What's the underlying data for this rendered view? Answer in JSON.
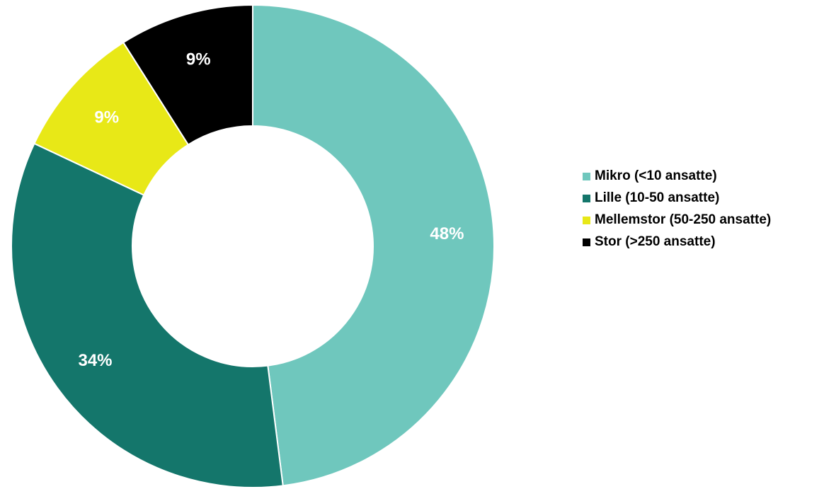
{
  "chart_data": {
    "type": "pie",
    "style": "donut",
    "title": "",
    "categories": [
      "Mikro (<10 ansatte)",
      "Lille (10-50 ansatte)",
      "Mellemstor (50-250 ansatte)",
      "Stor (>250 ansatte)"
    ],
    "values": [
      48,
      34,
      9,
      9
    ],
    "labels": [
      "48%",
      "34%",
      "9%",
      "9%"
    ],
    "colors": [
      "#6fc7bd",
      "#14766b",
      "#e8e817",
      "#000000"
    ],
    "legend_position": "right",
    "start_angle": "top, clockwise"
  }
}
